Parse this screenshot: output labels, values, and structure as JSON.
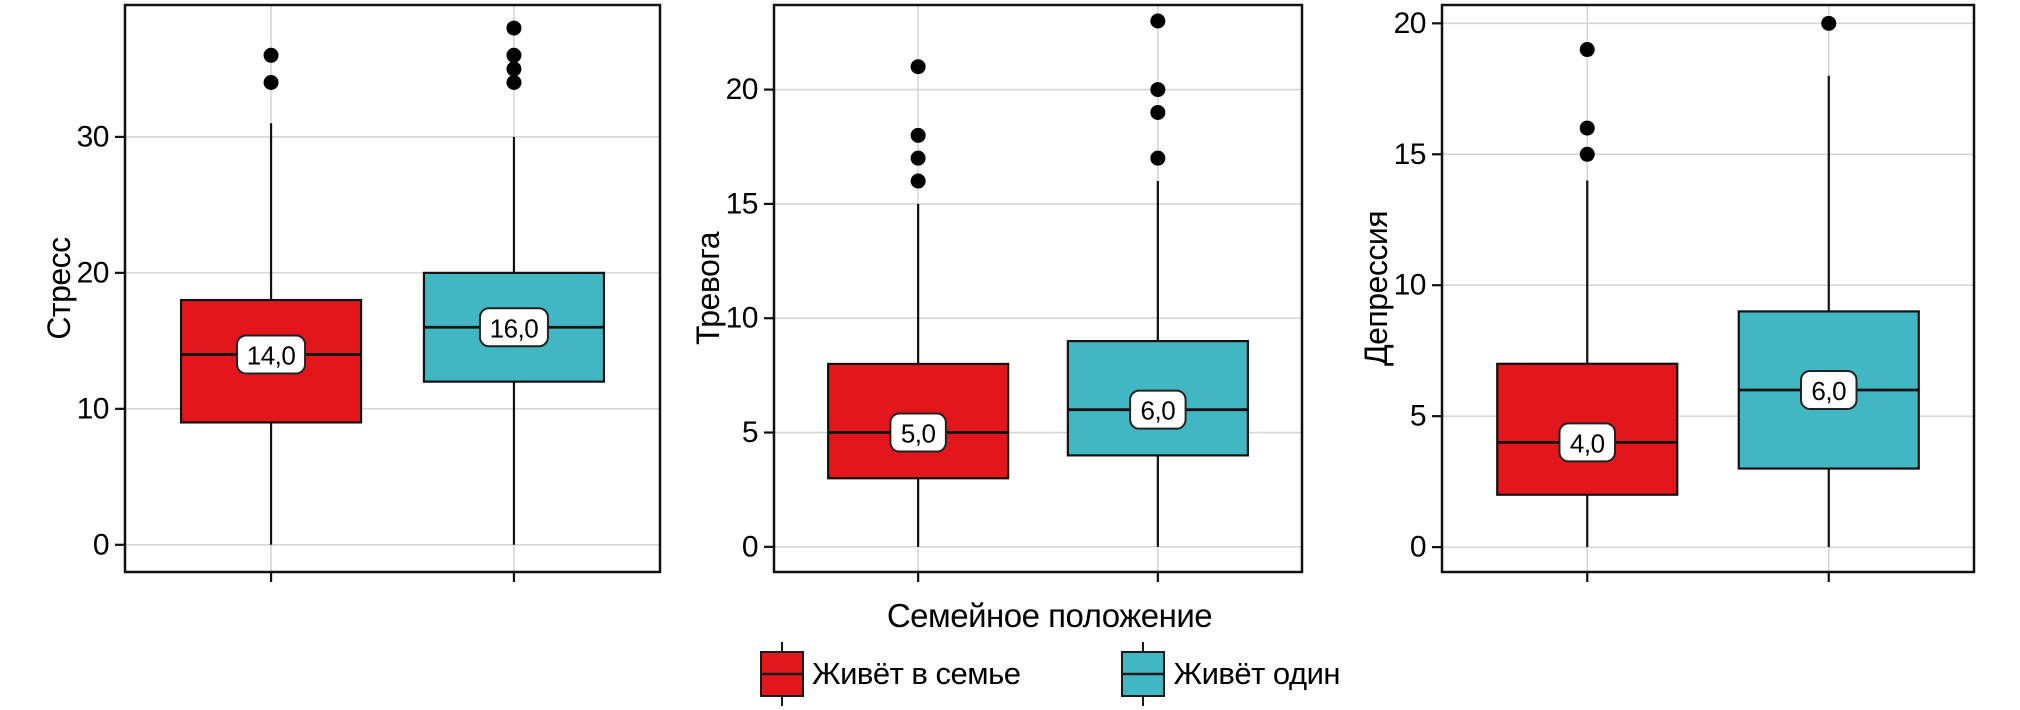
{
  "chart_data": {
    "type": "box",
    "xlabel": "Семейное положение",
    "legend": {
      "position": "bottom",
      "items": [
        {
          "label": "Живёт в семье",
          "color": "#e3161b"
        },
        {
          "label": "Живёт один",
          "color": "#41b7c4"
        }
      ]
    },
    "panels": [
      {
        "ylabel": "Стресс",
        "ylim": [
          -2,
          39.7
        ],
        "yticks": [
          0,
          10,
          20,
          30
        ],
        "grid": true,
        "boxes": [
          {
            "group": "Живёт в семье",
            "color": "#e3161b",
            "whisker_low": 0,
            "q1": 9,
            "median": 14,
            "q3": 18,
            "whisker_high": 31,
            "outliers": [
              34,
              36
            ],
            "median_label": "14,0"
          },
          {
            "group": "Живёт один",
            "color": "#41b7c4",
            "whisker_low": 0,
            "q1": 12,
            "median": 16,
            "q3": 20,
            "whisker_high": 30,
            "outliers": [
              34,
              35,
              36,
              38
            ],
            "median_label": "16,0"
          }
        ]
      },
      {
        "ylabel": "Тревога",
        "ylim": [
          -1.1,
          23.7
        ],
        "yticks": [
          0,
          5,
          10,
          15,
          20
        ],
        "grid": true,
        "boxes": [
          {
            "group": "Живёт в семье",
            "color": "#e3161b",
            "whisker_low": 0,
            "q1": 3,
            "median": 5,
            "q3": 8,
            "whisker_high": 15,
            "outliers": [
              16,
              17,
              18,
              21
            ],
            "median_label": "5,0"
          },
          {
            "group": "Живёт один",
            "color": "#41b7c4",
            "whisker_low": 0,
            "q1": 4,
            "median": 6,
            "q3": 9,
            "whisker_high": 16,
            "outliers": [
              17,
              19,
              20,
              23
            ],
            "median_label": "6,0"
          }
        ]
      },
      {
        "ylabel": "Депрессия",
        "ylim": [
          -0.95,
          20.7
        ],
        "yticks": [
          0,
          5,
          10,
          15,
          20
        ],
        "grid": true,
        "boxes": [
          {
            "group": "Живёт в семье",
            "color": "#e3161b",
            "whisker_low": 0,
            "q1": 2,
            "median": 4,
            "q3": 7,
            "whisker_high": 14,
            "outliers": [
              15,
              16,
              19
            ],
            "median_label": "4,0"
          },
          {
            "group": "Живёт один",
            "color": "#41b7c4",
            "whisker_low": 0,
            "q1": 3,
            "median": 6,
            "q3": 9,
            "whisker_high": 18,
            "outliers": [
              20
            ],
            "median_label": "6,0"
          }
        ]
      }
    ]
  }
}
